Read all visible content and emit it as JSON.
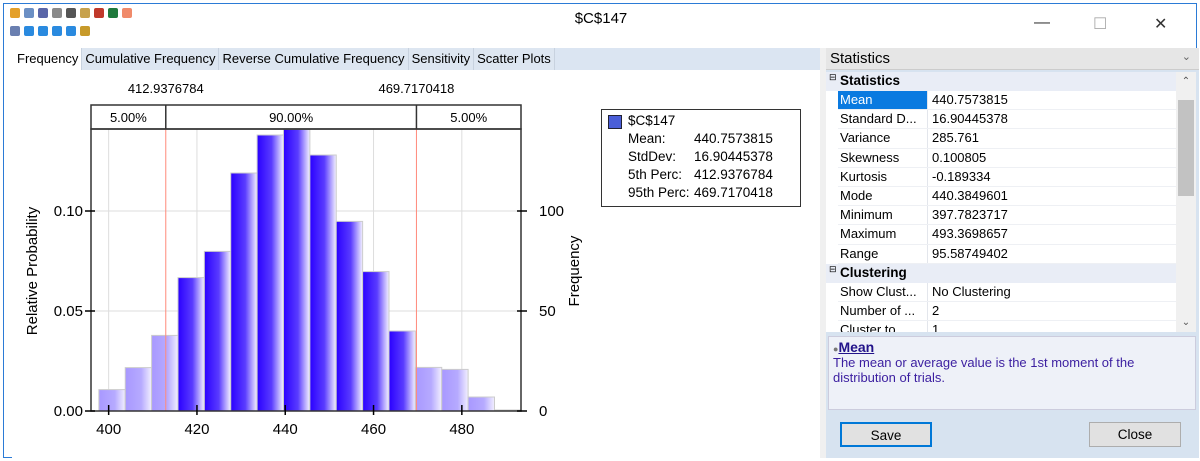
{
  "window": {
    "title": "$C$147",
    "minimize": "—",
    "maximize": "☐",
    "close": "✕"
  },
  "toolbar": {
    "row1": [
      "app-icon",
      "copy-icon",
      "save-icon",
      "print-icon",
      "dropdown-icon",
      "paste-icon",
      "chart-icon",
      "excel-icon",
      "settings-icon"
    ],
    "row2": [
      "snapshot-icon",
      "rotate-left-icon",
      "rotate-right-icon",
      "rotate-up-icon",
      "rotate-down-icon",
      "pointer-icon"
    ]
  },
  "tabs": [
    "Frequency",
    "Cumulative Frequency",
    "Reverse Cumulative Frequency",
    "Sensitivity",
    "Scatter Plots"
  ],
  "chart_data": {
    "type": "bar",
    "xlabel": "",
    "ylabel": "Relative Probability",
    "y2label": "Frequency",
    "bin_start": 397.7823717,
    "bin_width": 5.9742,
    "values": [
      0.0107,
      0.0217,
      0.0378,
      0.0667,
      0.0798,
      0.119,
      0.138,
      0.1408,
      0.128,
      0.0948,
      0.0697,
      0.04,
      0.0218,
      0.0208,
      0.007,
      0.0005
    ],
    "xlim": [
      396,
      493.4
    ],
    "ylim": [
      0,
      0.141
    ],
    "xticks": [
      "400",
      "420",
      "440",
      "460",
      "480"
    ],
    "yticks": [
      "0.00",
      "0.05",
      "0.10"
    ],
    "y2ticks": [
      "0",
      "50",
      "100"
    ],
    "lower_cut": 412.9376784,
    "upper_cut": 469.7170418,
    "lower_cut_label": "412.9376784",
    "upper_cut_label": "469.7170418",
    "regions": [
      "5.00%",
      "90.00%",
      "5.00%"
    ],
    "colors": {
      "inner": "#2a00ff",
      "tail": "#b3a6ff",
      "cut": "#ff8a7a"
    },
    "legend": {
      "name": "$C$147",
      "rows": [
        [
          "Mean:",
          "440.7573815"
        ],
        [
          "StdDev:",
          "16.90445378"
        ],
        [
          "5th Perc:",
          "412.9376784"
        ],
        [
          "95th Perc:",
          "469.7170418"
        ]
      ]
    }
  },
  "panel": {
    "title": "Statistics",
    "categories": [
      {
        "name": "Statistics",
        "rows": [
          [
            "Mean",
            "440.7573815"
          ],
          [
            "Standard D...",
            "16.90445378"
          ],
          [
            "Variance",
            "285.761"
          ],
          [
            "Skewness",
            "0.100805"
          ],
          [
            "Kurtosis",
            "-0.189334"
          ],
          [
            "Mode",
            "440.3849601"
          ],
          [
            "Minimum",
            "397.7823717"
          ],
          [
            "Maximum",
            "493.3698657"
          ],
          [
            "Range",
            "95.58749402"
          ]
        ]
      },
      {
        "name": "Clustering",
        "rows": [
          [
            "Show Clust...",
            "No Clustering"
          ],
          [
            "Number of ...",
            "2"
          ],
          [
            "Cluster to ...",
            "1"
          ]
        ]
      }
    ],
    "desc_title": "Mean",
    "desc_text": "The mean or average value is the 1st moment of the distribution of trials.",
    "save": "Save",
    "close": "Close"
  }
}
